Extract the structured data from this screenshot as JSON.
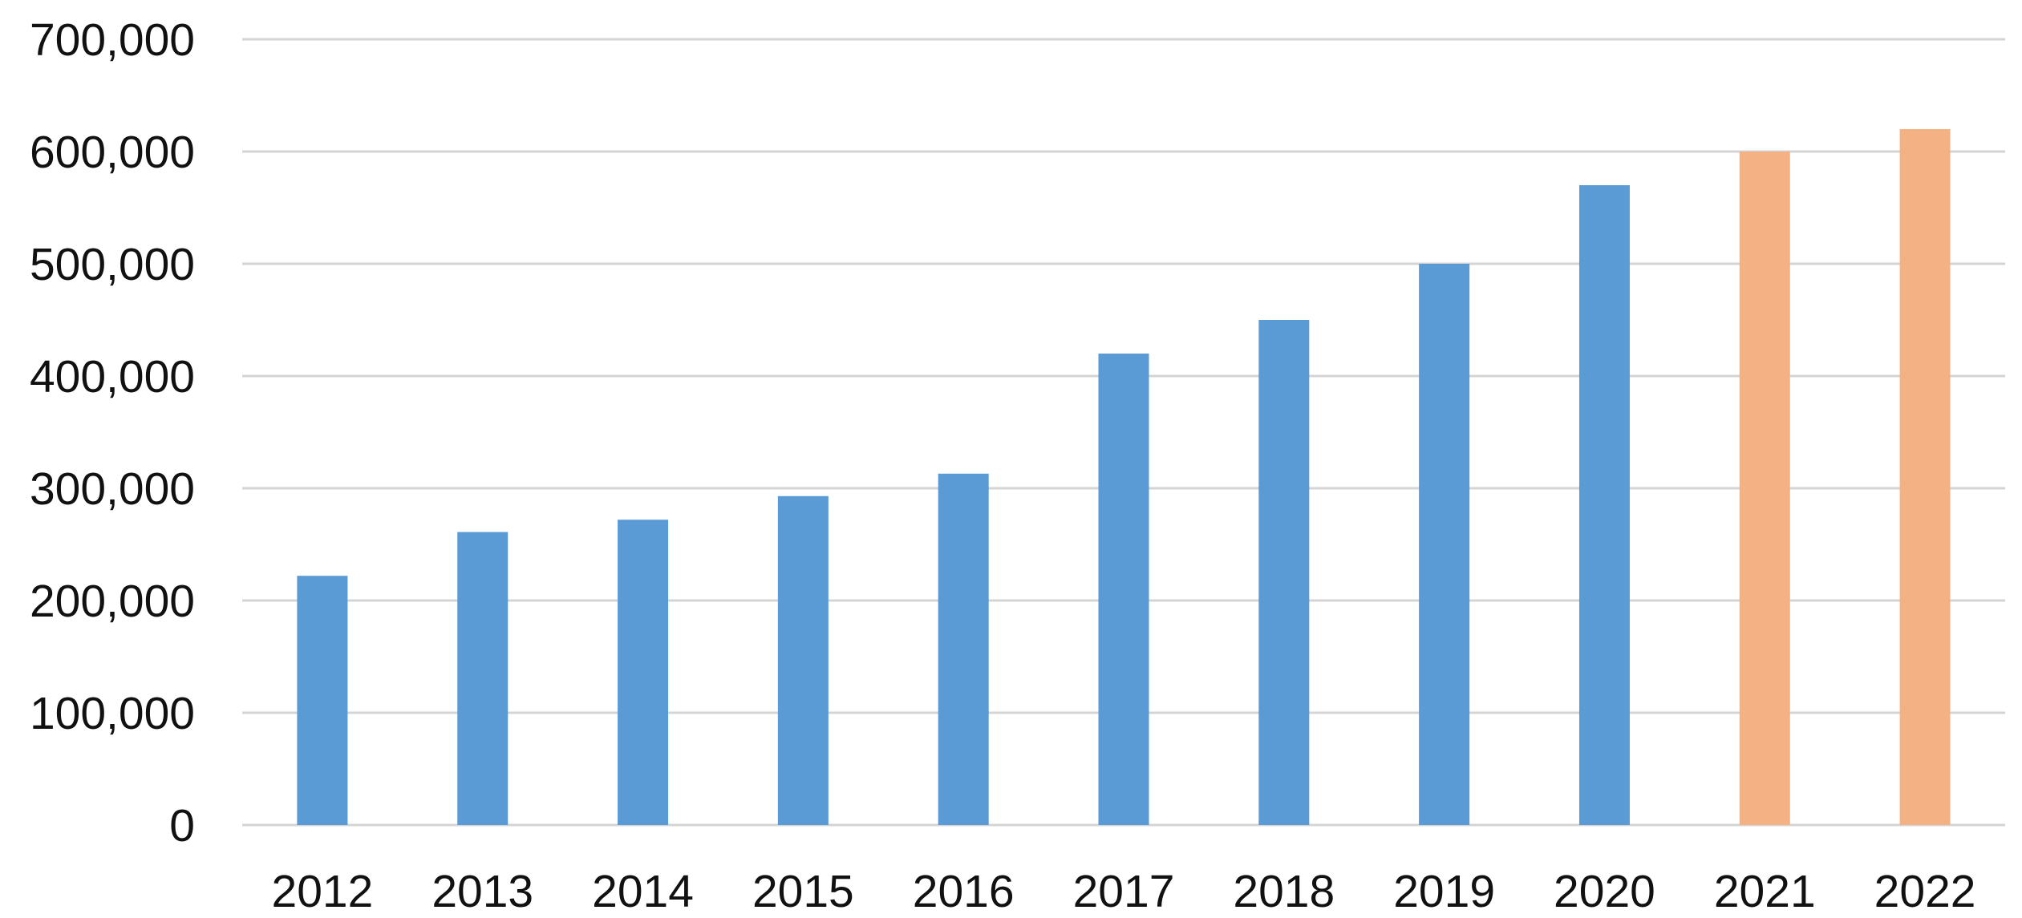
{
  "chart_data": {
    "type": "bar",
    "title": "",
    "xlabel": "",
    "ylabel": "",
    "categories": [
      "2012",
      "2013",
      "2014",
      "2015",
      "2016",
      "2017",
      "2018",
      "2019",
      "2020",
      "2021",
      "2022"
    ],
    "values": [
      222000,
      261000,
      272000,
      293000,
      313000,
      420000,
      450000,
      500000,
      570000,
      600000,
      620000
    ],
    "bar_colors": [
      "#5b9bd5",
      "#5b9bd5",
      "#5b9bd5",
      "#5b9bd5",
      "#5b9bd5",
      "#5b9bd5",
      "#5b9bd5",
      "#5b9bd5",
      "#5b9bd5",
      "#f4b183",
      "#f4b183"
    ],
    "ylim": [
      0,
      700000
    ],
    "yticks": [
      0,
      100000,
      200000,
      300000,
      400000,
      500000,
      600000,
      700000
    ],
    "ytick_labels": [
      "0",
      "100,000",
      "200,000",
      "300,000",
      "400,000",
      "500,000",
      "600,000",
      "700,000"
    ],
    "grid": true,
    "legend": "none"
  }
}
